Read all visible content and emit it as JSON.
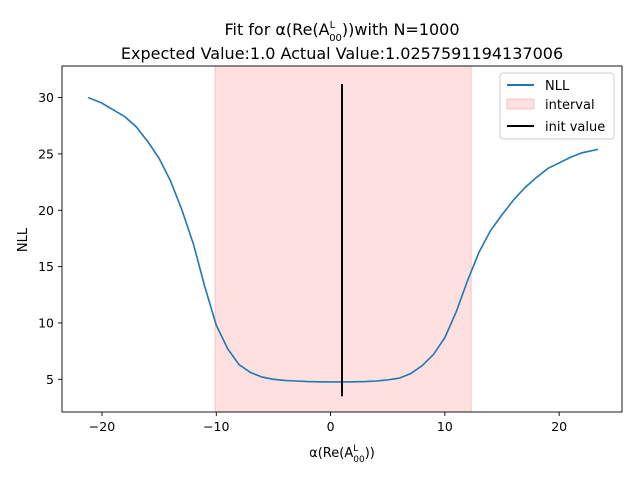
{
  "chart_data": {
    "type": "line",
    "title_line1": "Fit for α(Re(A",
    "title_line1_sup": "L",
    "title_line1_sub": "00",
    "title_line1_end": "))with N=1000",
    "title_line2": "Expected Value:1.0 Actual Value:1.0257591194137006",
    "xlabel_main": "α(Re(A",
    "xlabel_sup": "L",
    "xlabel_sub": "00",
    "xlabel_end": "))",
    "ylabel": "NLL",
    "xlim": [
      -23.5,
      25.5
    ],
    "ylim": [
      2.1,
      32.8
    ],
    "xticks": [
      -20,
      -10,
      0,
      10,
      20
    ],
    "xtick_labels": [
      "−20",
      "−10",
      "0",
      "10",
      "20"
    ],
    "yticks": [
      5,
      10,
      15,
      20,
      25,
      30
    ],
    "ytick_labels": [
      "5",
      "10",
      "15",
      "20",
      "25",
      "30"
    ],
    "interval": {
      "name": "interval",
      "x0": -10.1,
      "x1": 12.3,
      "color": "#ffe0e0",
      "edge_color": "#f7c4c4"
    },
    "init_value": {
      "name": "init value",
      "x": 1.0,
      "y0": 3.5,
      "y1": 31.2,
      "color": "#000000"
    },
    "series": [
      {
        "name": "NLL",
        "color": "#1f77b4",
        "x": [
          -21.2,
          -20.0,
          -19.0,
          -18.0,
          -17.0,
          -16.0,
          -15.0,
          -14.0,
          -13.0,
          -12.0,
          -11.0,
          -10.0,
          -9.0,
          -8.0,
          -7.0,
          -6.0,
          -5.0,
          -4.0,
          -3.0,
          -2.0,
          -1.0,
          0.0,
          1.0,
          2.0,
          3.0,
          4.0,
          5.0,
          6.0,
          7.0,
          8.0,
          9.0,
          10.0,
          11.0,
          12.0,
          13.0,
          14.0,
          15.0,
          16.0,
          17.0,
          18.0,
          19.0,
          20.0,
          21.0,
          22.0,
          23.4
        ],
        "y": [
          30.0,
          29.5,
          28.9,
          28.3,
          27.4,
          26.1,
          24.6,
          22.6,
          20.0,
          17.0,
          13.2,
          9.8,
          7.7,
          6.3,
          5.6,
          5.2,
          5.0,
          4.9,
          4.85,
          4.8,
          4.78,
          4.77,
          4.77,
          4.78,
          4.8,
          4.85,
          4.95,
          5.1,
          5.5,
          6.2,
          7.2,
          8.7,
          11.0,
          13.8,
          16.3,
          18.2,
          19.6,
          20.9,
          22.0,
          22.9,
          23.7,
          24.2,
          24.7,
          25.1,
          25.4
        ]
      }
    ],
    "legend": {
      "placement": "top-right",
      "entries": [
        "NLL",
        "interval",
        "init value"
      ]
    }
  }
}
